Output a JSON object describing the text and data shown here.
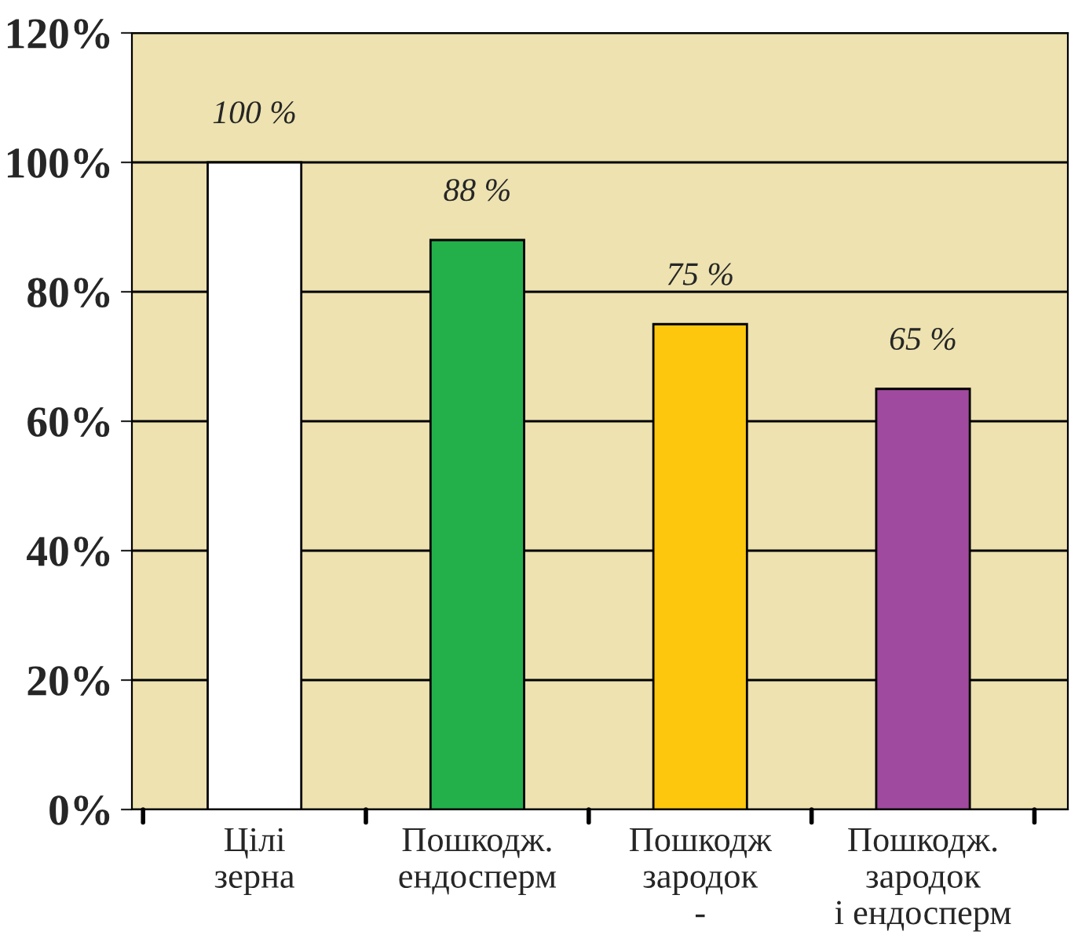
{
  "chart_data": {
    "type": "bar",
    "categories": [
      "Цілі\nзерна",
      "Пошкодж.\nендосперм",
      "Пошкодж\nзародок\n-",
      "Пошкодж.\nзародок\nі ендосперм"
    ],
    "values": [
      100,
      88,
      75,
      65
    ],
    "colors": [
      "#ffffff",
      "#23b04b",
      "#fdc70e",
      "#a04a9f"
    ],
    "value_labels": [
      "100 %",
      "88 %",
      "75 %",
      "65 %"
    ],
    "ylim": [
      0,
      120
    ],
    "yticks": [
      {
        "value": 0,
        "label": "0%"
      },
      {
        "value": 20,
        "label": "20%"
      },
      {
        "value": 40,
        "label": "40%"
      },
      {
        "value": 60,
        "label": "60%"
      },
      {
        "value": 80,
        "label": "80%"
      },
      {
        "value": 100,
        "label": "100%"
      },
      {
        "value": 120,
        "label": "120%"
      }
    ],
    "grid": "y",
    "legend": false
  }
}
